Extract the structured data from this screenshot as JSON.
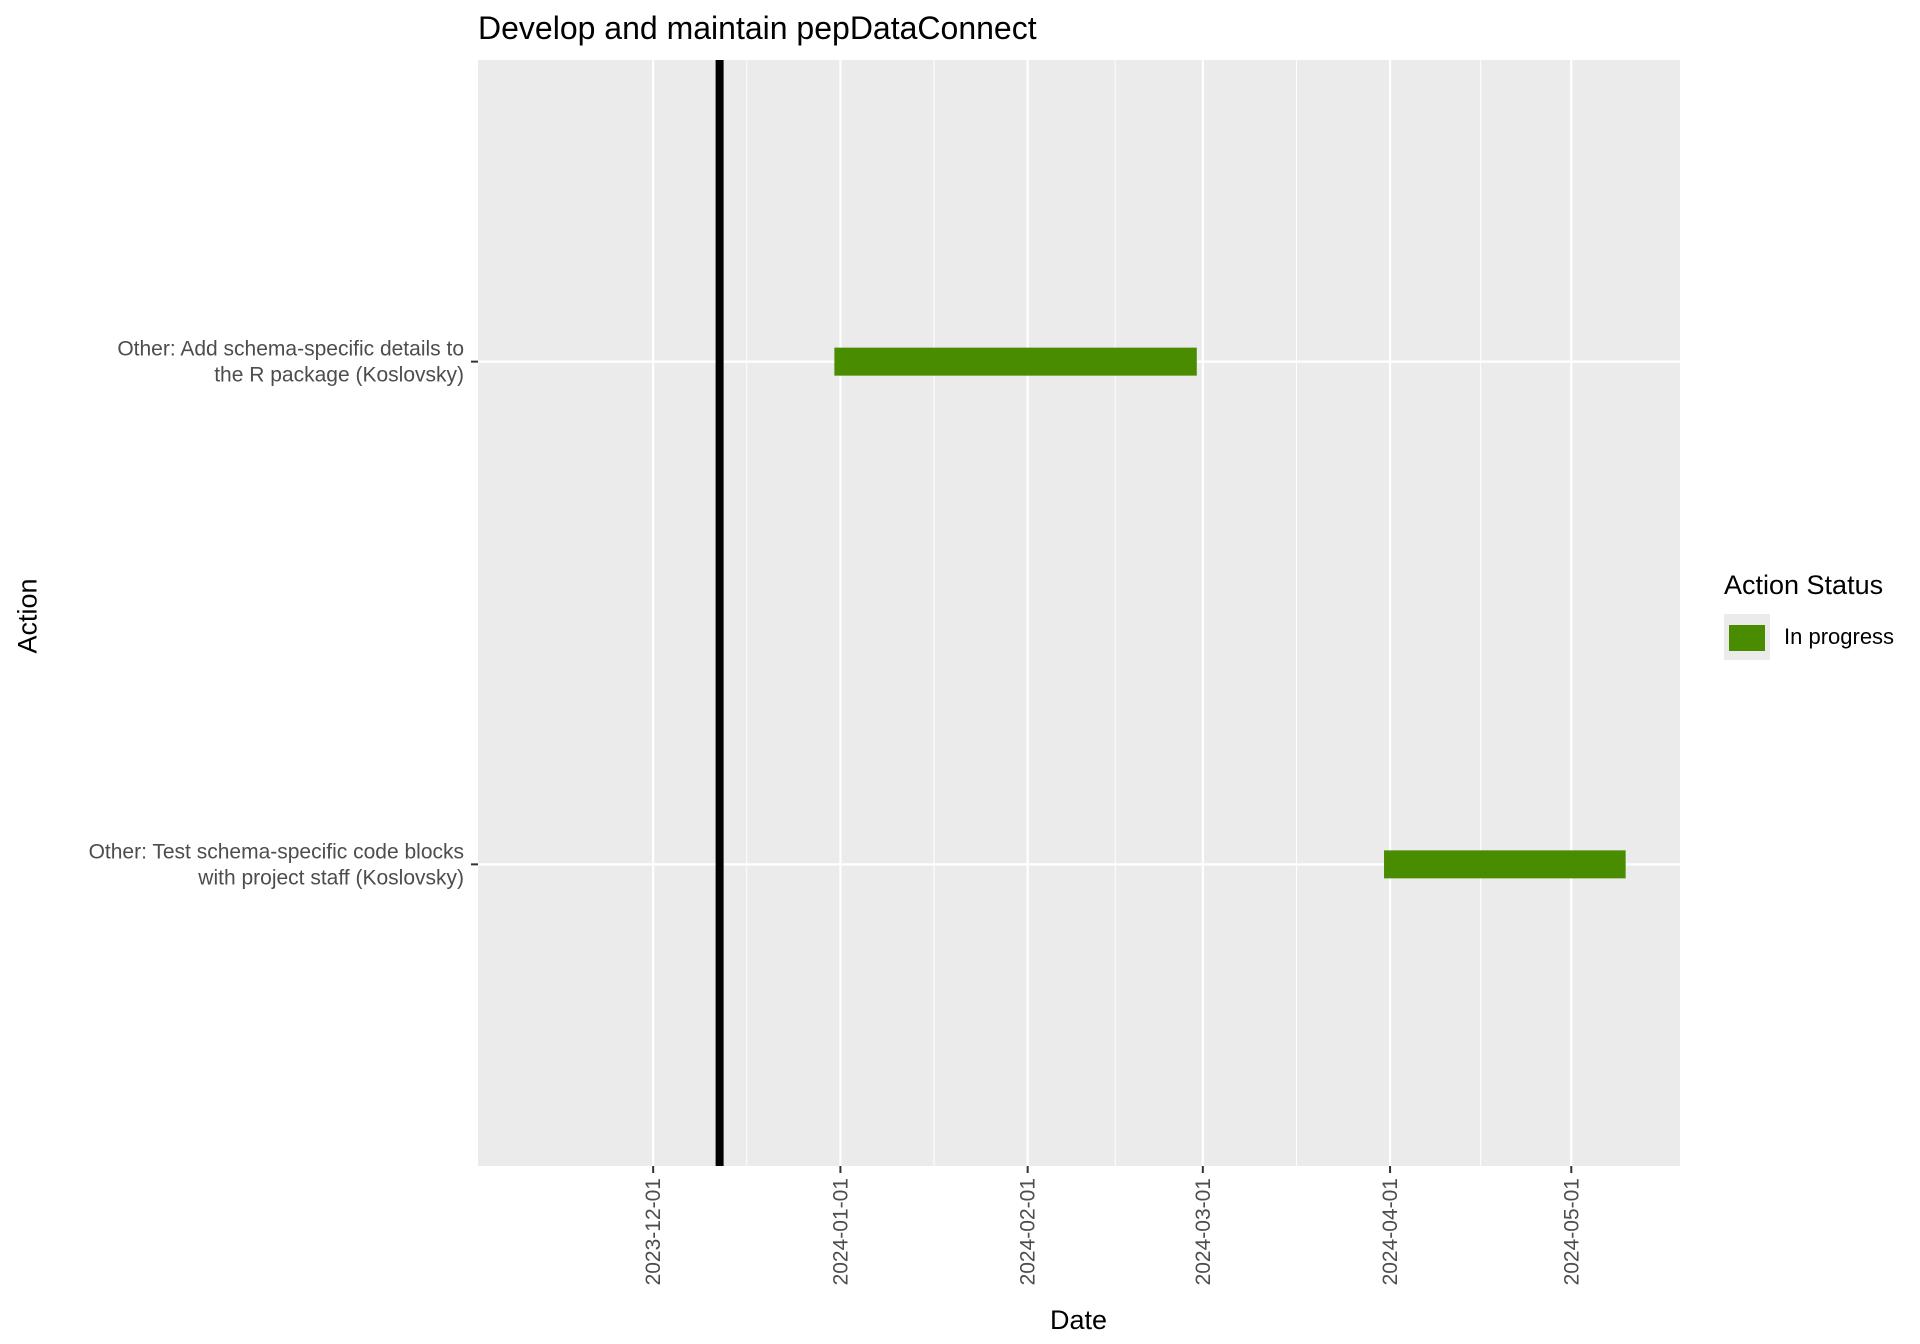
{
  "chart_data": {
    "type": "bar",
    "subtype": "gantt",
    "title": "Develop and maintain pepDataConnect",
    "xlabel": "Date",
    "ylabel": "Action",
    "x_axis_type": "date",
    "xlim": [
      "2023-11-02",
      "2024-05-19"
    ],
    "x_ticks": [
      "2023-12-01",
      "2024-01-01",
      "2024-02-01",
      "2024-03-01",
      "2024-04-01",
      "2024-05-01"
    ],
    "tick_label_rotation": "vertical",
    "categories": [
      "Other: Add schema-specific details to\nthe R package (Koslovsky)",
      "Other: Test schema-specific code blocks\nwith project staff (Koslovsky)"
    ],
    "tasks": [
      {
        "action": "Other: Add schema-specific details to\nthe R package (Koslovsky)",
        "start": "2023-12-31",
        "end": "2024-02-29",
        "status": "In progress"
      },
      {
        "action": "Other: Test schema-specific code blocks\nwith project staff (Koslovsky)",
        "start": "2024-03-31",
        "end": "2024-05-10",
        "status": "In progress"
      }
    ],
    "reference_line": {
      "date": "2023-12-12",
      "color": "#000000"
    },
    "legend": {
      "title": "Action Status",
      "placement": "right",
      "entries": [
        {
          "label": "In progress",
          "color": "#4a8c00"
        }
      ]
    },
    "grid": true,
    "panel_background": "#ebebeb",
    "grid_color": "#ffffff"
  }
}
